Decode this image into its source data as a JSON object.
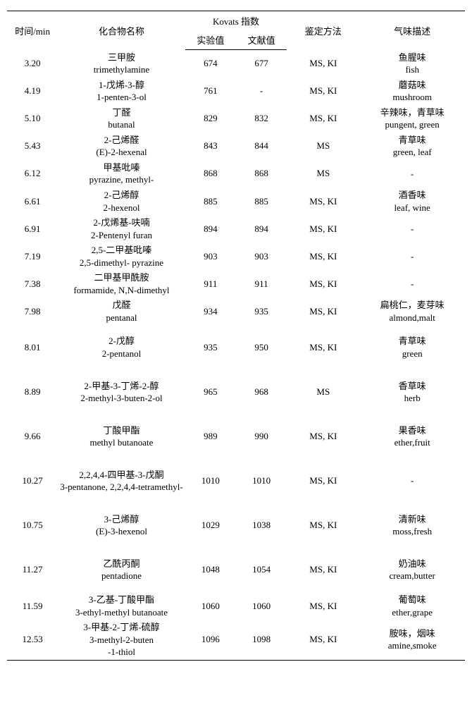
{
  "header": {
    "time": "时间/min",
    "compound": "化合物名称",
    "kovats": "Kovats 指数",
    "kovats_exp": "实验值",
    "kovats_lit": "文献值",
    "method": "鉴定方法",
    "odor": "气味描述"
  },
  "col_widths": [
    "70px",
    "175px",
    "70px",
    "70px",
    "100px",
    "150px"
  ],
  "rows": [
    {
      "time": "3.20",
      "cn": "三甲胺",
      "en": "trimethylamine",
      "exp": "674",
      "lit": "677",
      "method": "MS, KI",
      "odor_cn": "鱼腥味",
      "odor_en": "fish"
    },
    {
      "time": "4.19",
      "cn": "1-戊烯-3-醇",
      "en": "1-penten-3-ol",
      "exp": "761",
      "lit": "-",
      "method": "MS, KI",
      "odor_cn": "蘑菇味",
      "odor_en": "mushroom"
    },
    {
      "time": "5.10",
      "cn": "丁醛",
      "en": "butanal",
      "exp": "829",
      "lit": "832",
      "method": "MS, KI",
      "odor_cn": "辛辣味，青草味",
      "odor_en": "pungent, green"
    },
    {
      "time": "5.43",
      "cn": "2-己烯醛",
      "en": "(E)-2-hexenal",
      "exp": "843",
      "lit": "844",
      "method": "MS",
      "odor_cn": "青草味",
      "odor_en": "green, leaf"
    },
    {
      "time": "6.12",
      "cn": "甲基吡嗪",
      "en": "pyrazine, methyl-",
      "exp": "868",
      "lit": "868",
      "method": "MS",
      "odor_cn": "",
      "odor_en": "-"
    },
    {
      "time": "6.61",
      "cn": "2-己烯醇",
      "en": "2-hexenol",
      "exp": "885",
      "lit": "885",
      "method": "MS, KI",
      "odor_cn": "酒香味",
      "odor_en": "leaf, wine"
    },
    {
      "time": "6.91",
      "cn": "2-戊烯基-呋喃",
      "en": "2-Pentenyl furan",
      "exp": "894",
      "lit": "894",
      "method": "MS, KI",
      "odor_cn": "",
      "odor_en": "-"
    },
    {
      "time": "7.19",
      "cn": "2,5-二甲基吡嗪",
      "en": "2,5-dimethyl- pyrazine",
      "exp": "903",
      "lit": "903",
      "method": "MS, KI",
      "odor_cn": "",
      "odor_en": "-"
    },
    {
      "time": "7.38",
      "cn": "二甲基甲酰胺",
      "en": "formamide, N,N-dimethyl",
      "exp": "911",
      "lit": "911",
      "method": "MS, KI",
      "odor_cn": "",
      "odor_en": "-"
    },
    {
      "time": "7.98",
      "cn": "戊醛",
      "en": "pentanal",
      "exp": "934",
      "lit": "935",
      "method": "MS, KI",
      "odor_cn": "扁桃仁，麦芽味",
      "odor_en": "almond,malt"
    },
    {
      "time": "8.01",
      "cn": "2-戊醇",
      "en": "2-pentanol",
      "exp": "935",
      "lit": "950",
      "method": "MS, KI",
      "odor_cn": "青草味",
      "odor_en": "green",
      "tall": true
    },
    {
      "time": "8.89",
      "cn": "2-甲基-3-丁烯-2-醇",
      "en": "2-methyl-3-buten-2-ol",
      "exp": "965",
      "lit": "968",
      "method": "MS",
      "odor_cn": "香草味",
      "odor_en": "herb",
      "tall": true
    },
    {
      "time": "9.66",
      "cn": "丁酸甲酯",
      "en": "methyl butanoate",
      "exp": "989",
      "lit": "990",
      "method": "MS, KI",
      "odor_cn": "果香味",
      "odor_en": "ether,fruit",
      "tall": true
    },
    {
      "time": "10.27",
      "cn": "2,2,4,4-四甲基-3-戊酮",
      "en": "3-pentanone, 2,2,4,4-tetramethyl-",
      "exp": "1010",
      "lit": "1010",
      "method": "MS, KI",
      "odor_cn": "",
      "odor_en": "-",
      "tall": true
    },
    {
      "time": "10.75",
      "cn": "3-己烯醇",
      "en": "(E)-3-hexenol",
      "exp": "1029",
      "lit": "1038",
      "method": "MS, KI",
      "odor_cn": "清新味",
      "odor_en": "moss,fresh",
      "tall": true
    },
    {
      "time": "11.27",
      "cn": "乙酰丙酮",
      "en": "pentadione",
      "exp": "1048",
      "lit": "1054",
      "method": "MS, KI",
      "odor_cn": "奶油味",
      "odor_en": "cream,butter",
      "tall": true
    },
    {
      "time": "11.59",
      "cn": "3-乙基-丁酸甲酯",
      "en": "3-ethyl-methyl butanoate",
      "exp": "1060",
      "lit": "1060",
      "method": "MS, KI",
      "odor_cn": "葡萄味",
      "odor_en": "ether,grape"
    },
    {
      "time": "12.53",
      "cn": "3-甲基-2-丁烯-硫醇",
      "en": "3-methyl-2-buten",
      "en2": "-1-thiol",
      "exp": "1096",
      "lit": "1098",
      "method": "MS, KI",
      "odor_cn": "胺味，烟味",
      "odor_en": "amine,smoke"
    }
  ]
}
